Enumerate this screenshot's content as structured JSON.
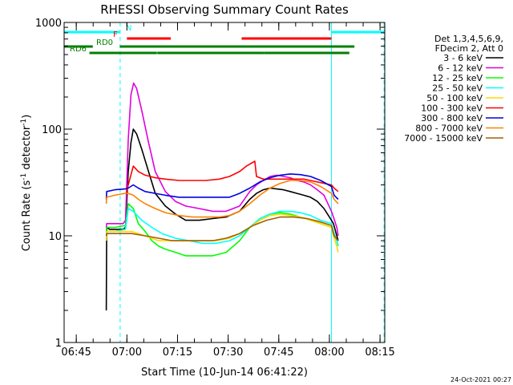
{
  "chart_data": {
    "type": "line",
    "title": "RHESSI Observing Summary Count Rates",
    "xlabel": "Start Time (10-Jun-14 06:41:22)",
    "ylabel_main": "Count Rate (s",
    "ylabel_sup1": "-1",
    "ylabel_mid": " detector",
    "ylabel_sup2": "-1",
    "ylabel_end": ")",
    "yscale": "log",
    "ylim": [
      1,
      1000
    ],
    "y_ticks": [
      {
        "value": 1,
        "label": "1"
      },
      {
        "value": 10,
        "label": "10"
      },
      {
        "value": 100,
        "label": "100"
      },
      {
        "value": 1000,
        "label": "1000"
      }
    ],
    "x_unit": "minutes after 06:41:22",
    "xlim": [
      0,
      95
    ],
    "x_ticks": [
      {
        "value": 3.6,
        "label": "06:45"
      },
      {
        "value": 18.6,
        "label": "07:00"
      },
      {
        "value": 33.6,
        "label": "07:15"
      },
      {
        "value": 48.6,
        "label": "07:30"
      },
      {
        "value": 63.6,
        "label": "07:45"
      },
      {
        "value": 78.6,
        "label": "08:00"
      },
      {
        "value": 93.6,
        "label": "08:15"
      }
    ],
    "legend_header": [
      "Det 1,3,4,5,6,9,",
      "FDecim 2, Att 0"
    ],
    "legend_placement": "right",
    "series": [
      {
        "name": "3 - 6 keV",
        "color": "#000000",
        "x": [
          12.5,
          12.6,
          13.5,
          15,
          17.5,
          18.2,
          19,
          19.8,
          20.5,
          21.5,
          23,
          25,
          27,
          30,
          33,
          36,
          40,
          44,
          48,
          52,
          55,
          57,
          59,
          61,
          63,
          65,
          67,
          69,
          71,
          73,
          75,
          77,
          79.2,
          79.8,
          80.8,
          81.2
        ],
        "y": [
          2,
          12,
          11.5,
          11.5,
          11.5,
          12,
          40,
          75,
          100,
          90,
          65,
          40,
          25,
          19,
          16,
          14,
          14,
          14.5,
          15,
          17,
          22,
          25,
          27,
          28,
          27.5,
          27,
          26,
          25,
          24,
          23,
          21,
          18,
          14,
          13,
          10,
          9
        ]
      },
      {
        "name": "6 - 12 keV",
        "color": "#e000e0",
        "x": [
          12.5,
          12.6,
          13.5,
          15,
          17.5,
          18.2,
          19,
          19.8,
          20.6,
          21.5,
          23,
          25,
          27,
          30,
          33,
          36,
          40,
          44,
          48,
          52,
          55,
          57,
          59,
          61,
          63,
          65,
          67,
          69,
          71,
          73,
          75,
          77,
          79.2,
          79.8,
          80.8,
          81.2
        ],
        "y": [
          12,
          13,
          13,
          13,
          13,
          14,
          80,
          210,
          270,
          240,
          150,
          75,
          40,
          26,
          21,
          19,
          18,
          17,
          17,
          19,
          26,
          30,
          33,
          36,
          37,
          36,
          35,
          33,
          32,
          30,
          27,
          24,
          17,
          15,
          12,
          10
        ]
      },
      {
        "name": "12 - 25 keV",
        "color": "#00ff00",
        "x": [
          12.5,
          12.6,
          15,
          18.2,
          19,
          20.5,
          22,
          24,
          26,
          28,
          30,
          33,
          36,
          40,
          44,
          48,
          52,
          55,
          58,
          61,
          64,
          67,
          70,
          73,
          76,
          79.2,
          79.8,
          80.8,
          81.2
        ],
        "y": [
          11,
          12,
          12,
          12.5,
          20,
          18,
          13,
          11,
          9,
          8,
          7.5,
          7,
          6.5,
          6.5,
          6.5,
          7,
          9,
          12,
          14.5,
          16,
          16.5,
          16,
          15,
          14,
          13,
          12,
          11,
          9,
          8
        ]
      },
      {
        "name": "25 - 50 keV",
        "color": "#00ffff",
        "x": [
          12.5,
          12.6,
          15,
          18.2,
          19,
          20.5,
          23,
          26,
          29,
          33,
          37,
          41,
          45,
          49,
          52,
          55,
          58,
          61,
          64,
          67,
          70,
          73,
          76,
          79.2,
          79.8,
          80.8,
          81.2
        ],
        "y": [
          10,
          11,
          11,
          11.5,
          18,
          17,
          14,
          12,
          10.5,
          9.5,
          9,
          8.5,
          8.5,
          9,
          10,
          12,
          14.5,
          16,
          17,
          17,
          16.5,
          15.5,
          14,
          13,
          11,
          9,
          8
        ]
      },
      {
        "name": "50 - 100 keV",
        "color": "#ffd800",
        "x": [
          12.5,
          12.6,
          15,
          18,
          20,
          22,
          24,
          26,
          28,
          30,
          33,
          37,
          41,
          45,
          49,
          52,
          55,
          58,
          61,
          64,
          67,
          70,
          73,
          76,
          79.2,
          79.8,
          80.8,
          81.2
        ],
        "y": [
          9,
          11,
          11,
          11,
          11,
          10.5,
          10,
          9.5,
          9,
          9,
          9,
          9,
          9,
          9,
          9.5,
          10.5,
          12,
          14,
          15.5,
          16,
          15.5,
          15,
          14,
          13,
          12,
          10,
          8,
          7
        ]
      },
      {
        "name": "100 - 300 keV",
        "color": "#ff0000",
        "x": [
          18.4,
          19,
          20.5,
          22,
          24,
          27,
          30,
          34,
          38,
          42,
          46,
          49,
          52,
          54,
          56.5,
          57,
          59,
          61,
          63,
          65,
          67,
          69,
          71,
          73,
          75,
          77,
          79.2,
          80,
          81.2
        ],
        "y": [
          25,
          30,
          45,
          40,
          37,
          35,
          34,
          33,
          33,
          33,
          34,
          36,
          40,
          45,
          50,
          36,
          34,
          34,
          34,
          34,
          34,
          34,
          34,
          33,
          32,
          31,
          30,
          28,
          26
        ]
      },
      {
        "name": "300 - 800 keV",
        "color": "#0000e0",
        "x": [
          12.5,
          12.6,
          15,
          18,
          19,
          20.5,
          22,
          24,
          27,
          30,
          34,
          38,
          42,
          46,
          49,
          52,
          55,
          58,
          61,
          64,
          67,
          70,
          73,
          76,
          79.2,
          80,
          81.2
        ],
        "y": [
          22,
          26,
          27,
          27.5,
          28,
          30,
          28,
          26,
          25,
          24,
          23,
          23,
          23,
          23,
          23,
          25,
          28,
          32,
          35,
          37,
          38,
          37.5,
          36,
          33,
          29,
          24,
          22
        ]
      },
      {
        "name": "800 - 7000 keV",
        "color": "#ff8000",
        "x": [
          12.5,
          12.6,
          15,
          18,
          19,
          20.5,
          22,
          24,
          27,
          30,
          34,
          38,
          42,
          46,
          49,
          52,
          55,
          58,
          61,
          64,
          67,
          70,
          73,
          76,
          79.2,
          80,
          81.2
        ],
        "y": [
          20,
          23,
          24,
          25,
          25,
          24,
          22,
          20,
          18,
          16.5,
          15.5,
          15,
          15,
          15,
          15.5,
          17,
          20,
          24,
          28,
          31,
          33,
          33,
          32,
          29,
          25,
          22,
          20
        ]
      },
      {
        "name": "7000 - 15000 keV",
        "color": "#a06000",
        "x": [
          12.5,
          12.6,
          15,
          18,
          20,
          24,
          28,
          32,
          36,
          40,
          44,
          48,
          52,
          56,
          60,
          64,
          68,
          72,
          76,
          79.2,
          80,
          81.2
        ],
        "y": [
          10,
          10.5,
          10.5,
          10.5,
          10.5,
          10,
          9.5,
          9,
          9,
          9,
          9,
          9.5,
          10.5,
          12.5,
          14,
          15,
          15,
          14.5,
          13.5,
          12.5,
          10,
          9
        ]
      }
    ],
    "flag_bars": [
      {
        "label": "N",
        "color": "#00ffff",
        "row": 1,
        "segments": [
          [
            0,
            16.5
          ],
          [
            79.2,
            95
          ]
        ]
      },
      {
        "label": "F",
        "color": "#ff0000",
        "row": 2,
        "segments": [
          [
            18.6,
            31.6
          ],
          [
            52.6,
            79.2
          ]
        ]
      },
      {
        "label": "RD0",
        "color": "#008000",
        "row": 3,
        "segments": [
          [
            0,
            8.5
          ],
          [
            16.5,
            86
          ]
        ]
      },
      {
        "label": "RD6",
        "color": "#008000",
        "row": 4,
        "segments": [
          [
            7.5,
            27.5
          ],
          [
            27.6,
            59.3
          ],
          [
            59.3,
            84.5
          ]
        ]
      }
    ],
    "vertical_lines": [
      {
        "x": 0,
        "color": "#00ffff",
        "style": "solid"
      },
      {
        "x": 16.6,
        "color": "#00ffff",
        "style": "dashed"
      },
      {
        "x": 79.2,
        "color": "#00ffff",
        "style": "solid"
      },
      {
        "x": 94.8,
        "color": "#00ffff",
        "style": "dashed"
      }
    ],
    "stamp": "24-Oct-2021 00:27"
  }
}
